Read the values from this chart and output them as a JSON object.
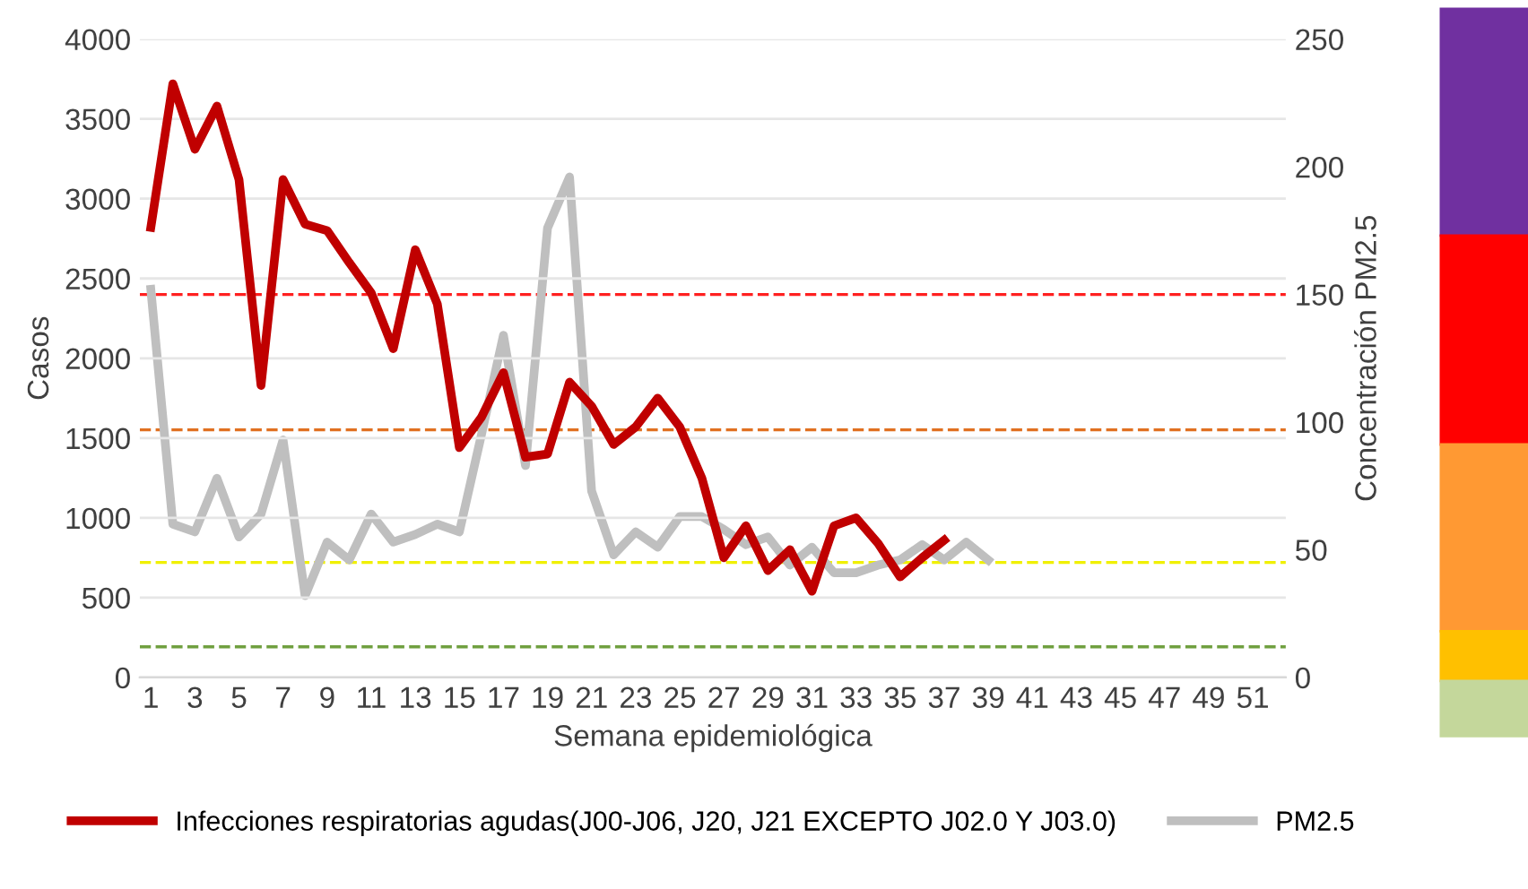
{
  "chart_data": {
    "type": "line",
    "xlabel": "Semana epidemiológica",
    "ylabel": "Casos",
    "y2label": "Concentración PM2.5",
    "categories": [
      "1",
      null,
      "3",
      null,
      "5",
      null,
      "7",
      null,
      "9",
      null,
      "11",
      null,
      "13",
      null,
      "15",
      null,
      "17",
      null,
      "19",
      null,
      "21",
      null,
      "23",
      null,
      "25",
      null,
      "27",
      null,
      "29",
      null,
      "31",
      null,
      "33",
      null,
      "35",
      null,
      "37",
      null,
      "39",
      null,
      "41",
      null,
      "43",
      null,
      "45",
      null,
      "47",
      null,
      "49",
      null,
      "51",
      null
    ],
    "series": [
      {
        "name": "Infecciones respiratorias agudas(J00-J06, J20, J21 EXCEPTO J02.0 Y J03.0)",
        "color": "#c00000",
        "values": [
          2820,
          3720,
          3310,
          3580,
          3120,
          1830,
          3120,
          2840,
          2800,
          2600,
          2410,
          2060,
          2680,
          2340,
          1440,
          1630,
          1910,
          1380,
          1400,
          1850,
          1700,
          1460,
          1570,
          1750,
          1570,
          1250,
          750,
          950,
          670,
          800,
          540,
          950,
          1000,
          840,
          630,
          750,
          860,
          null,
          null,
          null,
          null,
          null,
          null,
          null,
          null,
          null,
          null,
          null,
          null,
          null,
          null,
          null
        ]
      },
      {
        "name": "PM2.5",
        "color": "#bfbfbf",
        "axis": "y2",
        "values": [
          152,
          60,
          57,
          78,
          55,
          64,
          93,
          32,
          53,
          46,
          64,
          53,
          56,
          60,
          57,
          95,
          134,
          83,
          176,
          196,
          73,
          48,
          57,
          51,
          63,
          63,
          58,
          52,
          55,
          44,
          51,
          41,
          41,
          44,
          46,
          52,
          46,
          53,
          46,
          null,
          null,
          null,
          null,
          null,
          null,
          null,
          null,
          null,
          null,
          null,
          null,
          null
        ]
      }
    ],
    "ylim": [
      0,
      4000
    ],
    "yticks": [
      0,
      500,
      1000,
      1500,
      2000,
      2500,
      3000,
      3500,
      4000
    ],
    "y2lim": [
      0,
      250
    ],
    "y2ticks": [
      0,
      50,
      100,
      150,
      200,
      250
    ],
    "ref_lines": [
      {
        "axis": "y2",
        "value": 150,
        "color": "#ff2020",
        "line_style": "dashed"
      },
      {
        "axis": "y2",
        "value": 97,
        "color": "#e07020",
        "line_style": "dashed"
      },
      {
        "axis": "y2",
        "value": 45,
        "color": "#f0f000",
        "line_style": "dashed"
      },
      {
        "axis": "y2",
        "value": 12,
        "color": "#70a040",
        "line_style": "dashed"
      }
    ],
    "grid": "y",
    "legend": "bottom",
    "marker": "none",
    "line_style": "solid"
  }
}
